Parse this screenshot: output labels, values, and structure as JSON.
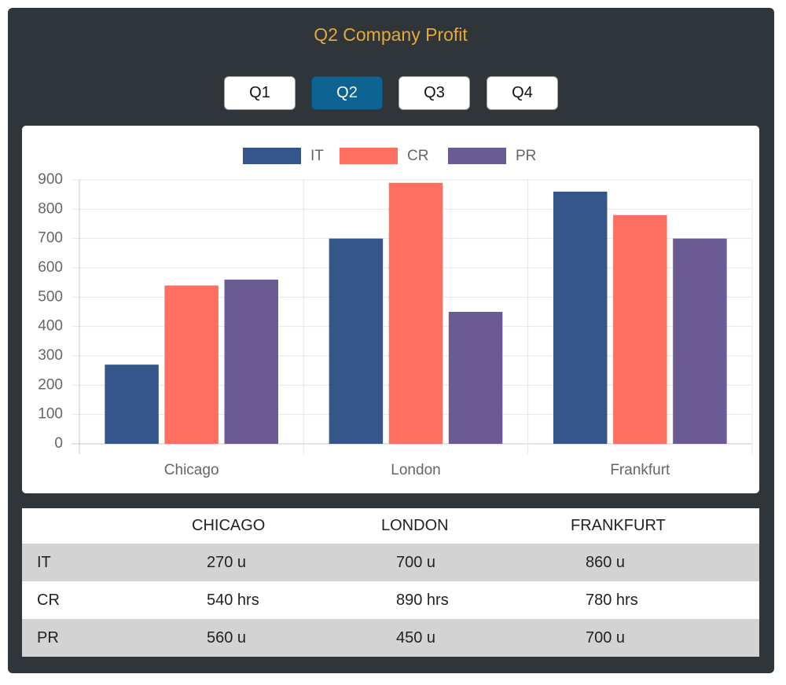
{
  "header": {
    "title": "Q2 Company Profit"
  },
  "tabs": {
    "items": [
      "Q1",
      "Q2",
      "Q3",
      "Q4"
    ],
    "active_index": 1
  },
  "chart_data": {
    "type": "bar",
    "categories": [
      "Chicago",
      "London",
      "Frankfurt"
    ],
    "series": [
      {
        "name": "IT",
        "color": "#34568b",
        "values": [
          270,
          700,
          860
        ]
      },
      {
        "name": "CR",
        "color": "#ff6f61",
        "values": [
          540,
          890,
          780
        ]
      },
      {
        "name": "PR",
        "color": "#6b5b95",
        "values": [
          560,
          450,
          700
        ]
      }
    ],
    "ylim": [
      0,
      900
    ],
    "yticks": [
      0,
      100,
      200,
      300,
      400,
      500,
      600,
      700,
      800,
      900
    ],
    "grid": true,
    "legend": "top"
  },
  "table": {
    "columns": [
      "CHICAGO",
      "LONDON",
      "FRANKFURT"
    ],
    "rows": [
      {
        "label": "IT",
        "cells": [
          "270 u",
          "700 u",
          "860 u"
        ]
      },
      {
        "label": "CR",
        "cells": [
          "540 hrs",
          "890 hrs",
          "780 hrs"
        ]
      },
      {
        "label": "PR",
        "cells": [
          "560 u",
          "450 u",
          "700 u"
        ]
      }
    ]
  }
}
